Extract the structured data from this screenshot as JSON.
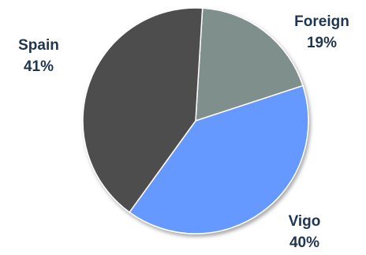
{
  "chart_data": {
    "type": "pie",
    "title": "",
    "slices": [
      {
        "label": "Foreign",
        "value": 19,
        "value_label": "19%",
        "color": "#7f8f8c"
      },
      {
        "label": "Vigo",
        "value": 40,
        "value_label": "40%",
        "color": "#6699ff"
      },
      {
        "label": "Spain",
        "value": 41,
        "value_label": "41%",
        "color": "#4d4d4d"
      }
    ],
    "start_angle_deg": 3.5,
    "direction": "clockwise"
  }
}
